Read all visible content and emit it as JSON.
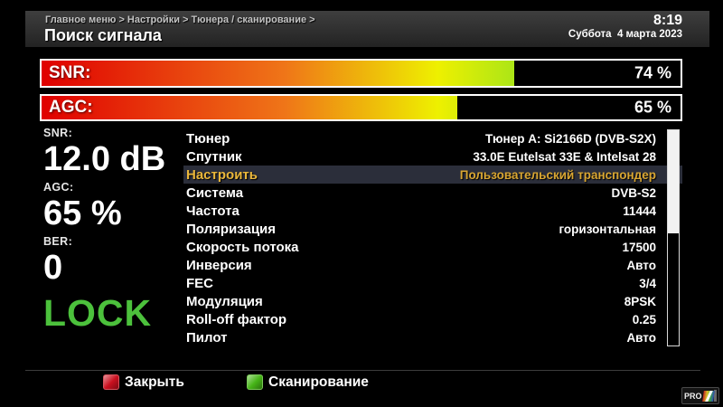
{
  "header": {
    "breadcrumb": "Главное меню > Настройки > Тюнера / сканирование >",
    "title": "Поиск сигнала",
    "time": "8:19",
    "date": "Суббота  4 марта 2023"
  },
  "signal_bars": [
    {
      "id": "snr",
      "label": "SNR:",
      "value_text": "74 %",
      "percent": 74
    },
    {
      "id": "agc",
      "label": "AGC:",
      "value_text": "65 %",
      "percent": 65
    }
  ],
  "metrics": [
    {
      "label": "SNR:",
      "value": "12.0 dB"
    },
    {
      "label": "AGC:",
      "value": "65 %"
    },
    {
      "label": "BER:",
      "value": "0"
    }
  ],
  "lock_status": "LOCK",
  "settings": {
    "selected_index": 2,
    "scrollbar_thumb_percent": 48,
    "rows": [
      {
        "label": "Тюнер",
        "value": "Тюнер A: Si2166D (DVB-S2X)"
      },
      {
        "label": "Спутник",
        "value": "33.0E Eutelsat 33E & Intelsat 28"
      },
      {
        "label": "Настроить",
        "value": "Пользовательский транспондер"
      },
      {
        "label": "Система",
        "value": "DVB-S2"
      },
      {
        "label": "Частота",
        "value": "11444"
      },
      {
        "label": "Поляризация",
        "value": "горизонтальная"
      },
      {
        "label": "Скорость потока",
        "value": "17500"
      },
      {
        "label": "Инверсия",
        "value": "Авто"
      },
      {
        "label": "FEC",
        "value": "3/4"
      },
      {
        "label": "Модуляция",
        "value": "8PSK"
      },
      {
        "label": "Roll-off фактор",
        "value": "0.25"
      },
      {
        "label": "Пилот",
        "value": "Авто"
      }
    ]
  },
  "footer": {
    "buttons": [
      {
        "label": "Закрыть",
        "key_color": "#c9101f"
      },
      {
        "label": "Сканирование",
        "key_color": "#46b517"
      }
    ]
  },
  "watermark": {
    "text": "PRO"
  },
  "colors": {
    "lock_green": "#4cc13c",
    "selected_row_bg": "#2b2e3a",
    "selected_row_text": "#eab73b",
    "bar_gradient": [
      "#e00000",
      "#ef7518",
      "#eef000",
      "#56c818"
    ],
    "header_bg": "#2e2e2e"
  }
}
